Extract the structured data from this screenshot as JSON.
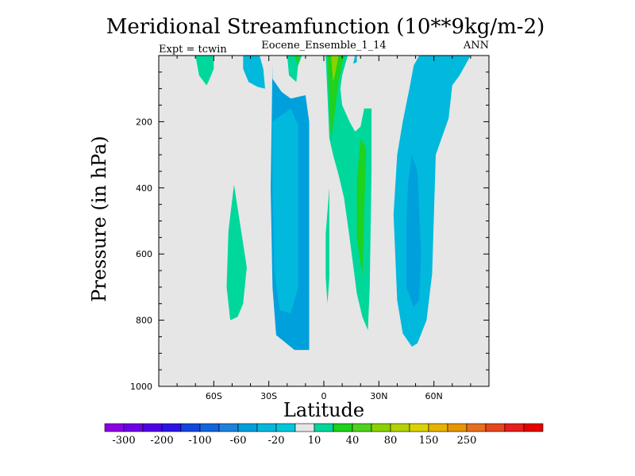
{
  "chart_data": {
    "type": "contour",
    "title": "Meridional Streamfunction (10**9kg/m-2)",
    "subtitle": "Eocene_Ensemble_1_14",
    "left_label": "Expt = tcwin",
    "right_label": "ANN",
    "xlabel": "Latitude",
    "ylabel": "Pressure (in hPa)",
    "xlim": [
      -90,
      90
    ],
    "ylim": [
      1000,
      0
    ],
    "x_ticks": [
      {
        "value": -60,
        "label": "60S"
      },
      {
        "value": -30,
        "label": "30S"
      },
      {
        "value": 0,
        "label": "0"
      },
      {
        "value": 30,
        "label": "30N"
      },
      {
        "value": 60,
        "label": "60N"
      }
    ],
    "y_ticks": [
      {
        "value": 200,
        "label": "200"
      },
      {
        "value": 400,
        "label": "400"
      },
      {
        "value": 600,
        "label": "600"
      },
      {
        "value": 800,
        "label": "800"
      },
      {
        "value": 1000,
        "label": "1000"
      }
    ],
    "background_level_color": "#e6e6e6",
    "regions": [
      {
        "level": -60,
        "color": "#00a0dc",
        "points": [
          [
            -28,
            25
          ],
          [
            -28,
            70
          ],
          [
            -23,
            110
          ],
          [
            -18,
            130
          ],
          [
            -10,
            120
          ],
          [
            -8,
            200
          ],
          [
            -8,
            890
          ],
          [
            -16,
            890
          ],
          [
            -26,
            845
          ],
          [
            -28,
            700
          ],
          [
            -29,
            400
          ]
        ]
      },
      {
        "level": -20,
        "color": "#00b9dc",
        "points": [
          [
            -28,
            200
          ],
          [
            -23,
            180
          ],
          [
            -18,
            160
          ],
          [
            -14,
            210
          ],
          [
            -14,
            700
          ],
          [
            -18,
            780
          ],
          [
            -24,
            770
          ],
          [
            -27,
            650
          ],
          [
            -28,
            400
          ]
        ]
      },
      {
        "level": -20,
        "color": "#00b9dc",
        "points": [
          [
            -44,
            0
          ],
          [
            -35,
            0
          ],
          [
            -33,
            40
          ],
          [
            -32,
            100
          ],
          [
            -36,
            95
          ],
          [
            -41,
            80
          ],
          [
            -44,
            40
          ]
        ]
      },
      {
        "level": -20,
        "color": "#00b9dc",
        "points": [
          [
            17,
            0
          ],
          [
            18,
            0
          ],
          [
            18,
            20
          ],
          [
            16,
            25
          ]
        ]
      },
      {
        "level": -20,
        "color": "#00b9dc",
        "points": [
          [
            52,
            0
          ],
          [
            80,
            0
          ],
          [
            74,
            60
          ],
          [
            70,
            90
          ],
          [
            68,
            190
          ],
          [
            61,
            300
          ],
          [
            59,
            660
          ],
          [
            56,
            800
          ],
          [
            51,
            870
          ],
          [
            48,
            880
          ],
          [
            43,
            840
          ],
          [
            40,
            740
          ],
          [
            38,
            480
          ],
          [
            40,
            300
          ],
          [
            43,
            200
          ],
          [
            47,
            90
          ],
          [
            49,
            30
          ]
        ]
      },
      {
        "level": -60,
        "color": "#00a0dc",
        "points": [
          [
            48,
            300
          ],
          [
            51,
            350
          ],
          [
            53,
            600
          ],
          [
            52,
            740
          ],
          [
            49,
            760
          ],
          [
            45,
            700
          ],
          [
            45,
            500
          ],
          [
            46,
            380
          ]
        ]
      },
      {
        "level": 10,
        "color": "#00d79b",
        "points": [
          [
            -70,
            0
          ],
          [
            -60,
            0
          ],
          [
            -60,
            40
          ],
          [
            -63,
            80
          ],
          [
            -64,
            90
          ],
          [
            -68,
            60
          ]
        ]
      },
      {
        "level": 10,
        "color": "#00d79b",
        "points": [
          [
            -49,
            390
          ],
          [
            -42,
            640
          ],
          [
            -44,
            750
          ],
          [
            -47,
            790
          ],
          [
            -51,
            800
          ],
          [
            -53,
            700
          ],
          [
            -52,
            530
          ]
        ]
      },
      {
        "level": 10,
        "color": "#00d79b",
        "points": [
          [
            -20,
            0
          ],
          [
            -12,
            0
          ],
          [
            -14,
            30
          ],
          [
            -15,
            80
          ],
          [
            -19,
            60
          ]
        ]
      },
      {
        "level": 10,
        "color": "#00d79b",
        "points": [
          [
            1,
            0
          ],
          [
            13,
            0
          ],
          [
            10,
            60
          ],
          [
            9,
            100
          ],
          [
            10,
            150
          ],
          [
            14,
            200
          ],
          [
            17,
            230
          ],
          [
            20,
            215
          ],
          [
            22,
            160
          ],
          [
            26,
            160
          ],
          [
            26,
            350
          ],
          [
            25,
            700
          ],
          [
            24,
            830
          ],
          [
            21,
            790
          ],
          [
            18,
            720
          ],
          [
            14,
            550
          ],
          [
            11,
            430
          ],
          [
            8,
            360
          ],
          [
            5,
            300
          ],
          [
            3,
            250
          ],
          [
            2,
            120
          ]
        ]
      },
      {
        "level": 10,
        "color": "#00d79b",
        "points": [
          [
            3,
            400
          ],
          [
            3,
            540
          ],
          [
            3,
            670
          ],
          [
            2,
            750
          ],
          [
            1,
            670
          ],
          [
            1,
            540
          ]
        ]
      },
      {
        "level": 40,
        "color": "#1ed21e",
        "points": [
          [
            2,
            0
          ],
          [
            11,
            0
          ],
          [
            8,
            80
          ],
          [
            6,
            170
          ],
          [
            4,
            260
          ],
          [
            3,
            150
          ]
        ]
      },
      {
        "level": 40,
        "color": "#1ed21e",
        "points": [
          [
            20,
            250
          ],
          [
            23,
            280
          ],
          [
            22,
            480
          ],
          [
            21,
            670
          ],
          [
            18,
            550
          ],
          [
            18,
            380
          ]
        ]
      },
      {
        "level": 40,
        "color": "#1ed21e",
        "points": [
          [
            -16,
            0
          ],
          [
            -13,
            0
          ],
          [
            -14,
            30
          ]
        ]
      },
      {
        "level": 80,
        "color": "#8cd200",
        "points": [
          [
            4,
            0
          ],
          [
            8,
            0
          ],
          [
            6,
            60
          ],
          [
            5,
            80
          ]
        ]
      }
    ],
    "colorbar": {
      "levels": [
        -300,
        -250,
        -200,
        -150,
        -100,
        -80,
        -60,
        -40,
        -20,
        -10,
        10,
        20,
        40,
        60,
        80,
        100,
        150,
        200,
        250,
        300
      ],
      "colors": [
        "#8c00e6",
        "#6e00e6",
        "#5000e6",
        "#2d14e6",
        "#1446dc",
        "#1464dc",
        "#1e82dc",
        "#00a0dc",
        "#00b9dc",
        "#00c8dc",
        "#e6e6e6",
        "#00d79b",
        "#1ed21e",
        "#50d21e",
        "#8cd200",
        "#b4d200",
        "#dcd200",
        "#e6b400",
        "#e69600",
        "#e66e1e",
        "#e6461e",
        "#e61e1e",
        "#e60000"
      ],
      "labels": [
        {
          "after": 0,
          "text": "-300"
        },
        {
          "after": 2,
          "text": "-200"
        },
        {
          "after": 4,
          "text": "-100"
        },
        {
          "after": 6,
          "text": "-60"
        },
        {
          "after": 8,
          "text": "-20"
        },
        {
          "after": 10,
          "text": "10"
        },
        {
          "after": 12,
          "text": "40"
        },
        {
          "after": 14,
          "text": "80"
        },
        {
          "after": 16,
          "text": "150"
        },
        {
          "after": 18,
          "text": "250"
        }
      ]
    }
  }
}
